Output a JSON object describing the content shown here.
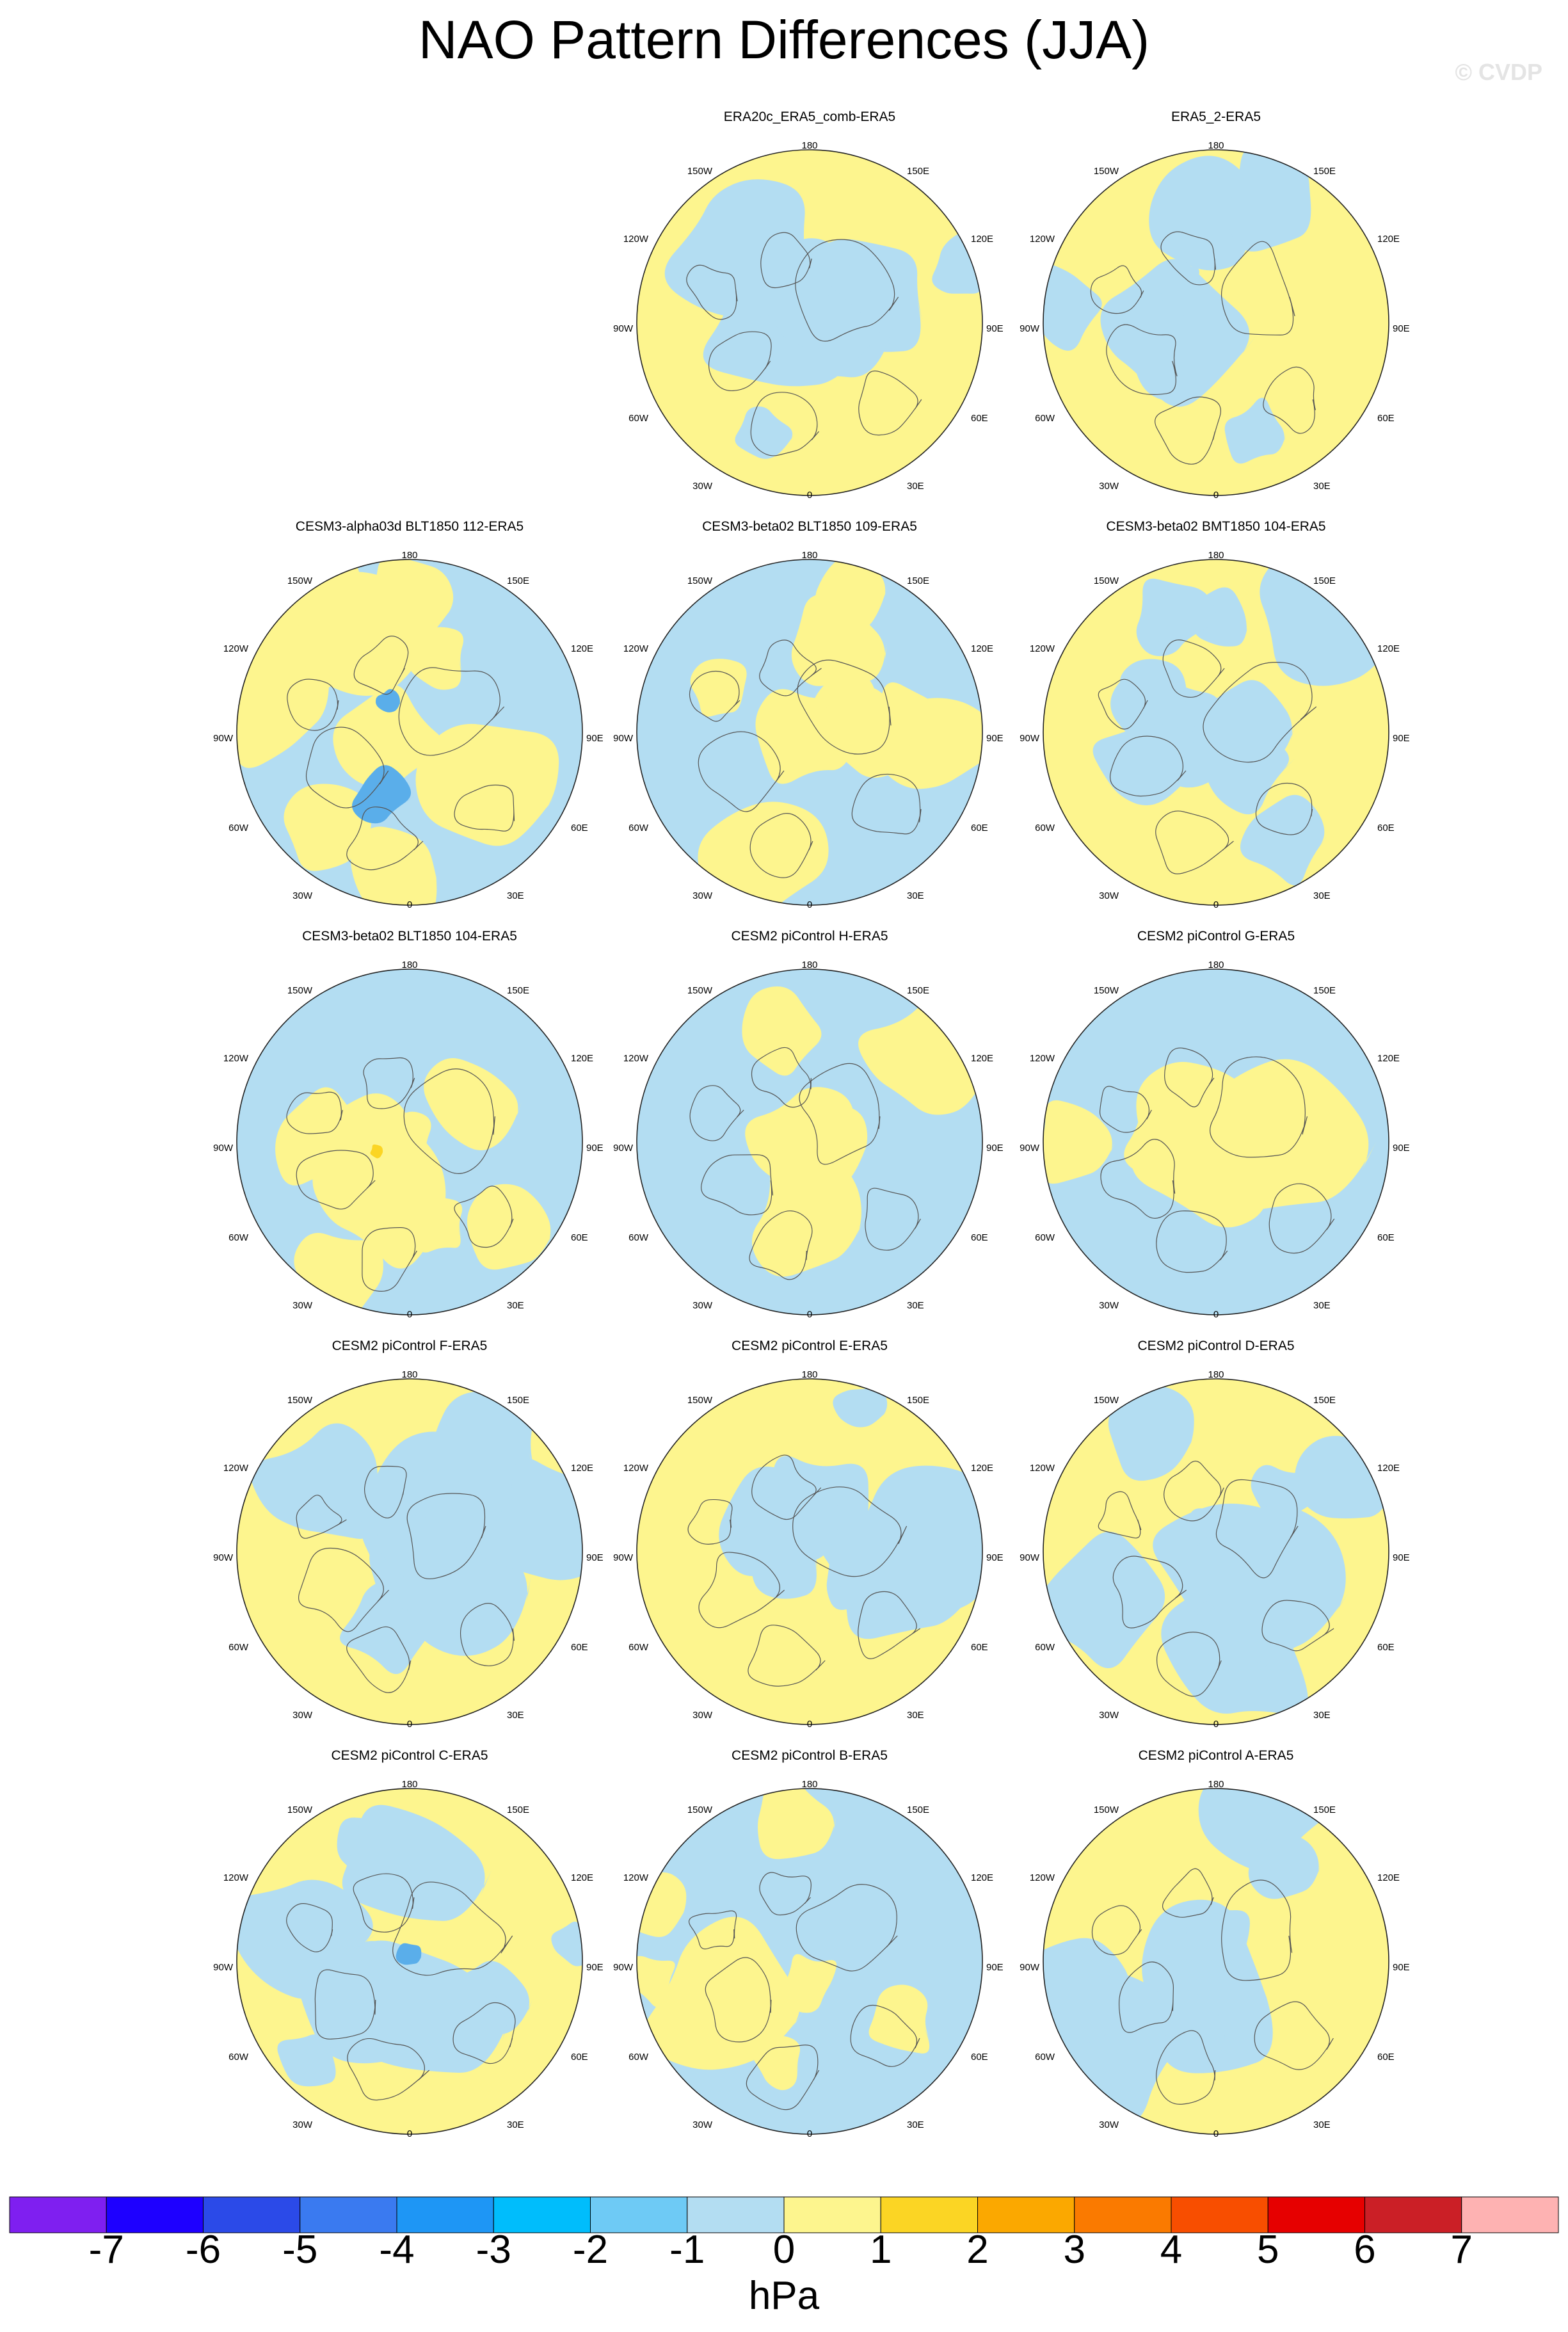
{
  "title": "NAO Pattern Differences (JJA)",
  "watermark": "© CVDP",
  "longitude_labels": {
    "top": "180",
    "bottom": "0",
    "upper_left": "150W",
    "upper_right": "150E",
    "mid_upper_left": "120W",
    "mid_upper_right": "120E",
    "left": "90W",
    "right": "90E",
    "mid_lower_left": "60W",
    "mid_lower_right": "60E",
    "lower_left": "30W",
    "lower_right": "30E"
  },
  "panels": [
    {
      "title": "ERA20c_ERA5_comb-ERA5",
      "dominant": "yellow"
    },
    {
      "title": "ERA5_2-ERA5",
      "dominant": "yellow"
    },
    {
      "title": "CESM3-alpha03d BLT1850 112-ERA5",
      "dominant": "blue"
    },
    {
      "title": "CESM3-beta02 BLT1850 109-ERA5",
      "dominant": "blue"
    },
    {
      "title": "CESM3-beta02 BMT1850 104-ERA5",
      "dominant": "yellow"
    },
    {
      "title": "CESM3-beta02 BLT1850 104-ERA5",
      "dominant": "blue"
    },
    {
      "title": "CESM2 piControl H-ERA5",
      "dominant": "blue"
    },
    {
      "title": "CESM2 piControl G-ERA5",
      "dominant": "blue"
    },
    {
      "title": "CESM2 piControl F-ERA5",
      "dominant": "yellow"
    },
    {
      "title": "CESM2 piControl E-ERA5",
      "dominant": "yellow"
    },
    {
      "title": "CESM2 piControl D-ERA5",
      "dominant": "yellow"
    },
    {
      "title": "CESM2 piControl C-ERA5",
      "dominant": "yellow"
    },
    {
      "title": "CESM2 piControl B-ERA5",
      "dominant": "blue"
    },
    {
      "title": "CESM2 piControl A-ERA5",
      "dominant": "yellow"
    }
  ],
  "colorbar": {
    "colors": [
      "#7f1ff0",
      "#1e00ff",
      "#2b4ae8",
      "#3a7af0",
      "#1e96f5",
      "#00bdfc",
      "#6ecaf5",
      "#b3ddf2",
      "#fdf58e",
      "#fbd524",
      "#fba800",
      "#fa7a00",
      "#f84e00",
      "#e60000",
      "#cb1f26",
      "#feb2b2"
    ],
    "labels": [
      "-7",
      "-6",
      "-5",
      "-4",
      "-3",
      "-2",
      "-1",
      "0",
      "1",
      "2",
      "3",
      "4",
      "5",
      "6",
      "7"
    ],
    "unit": "hPa"
  }
}
